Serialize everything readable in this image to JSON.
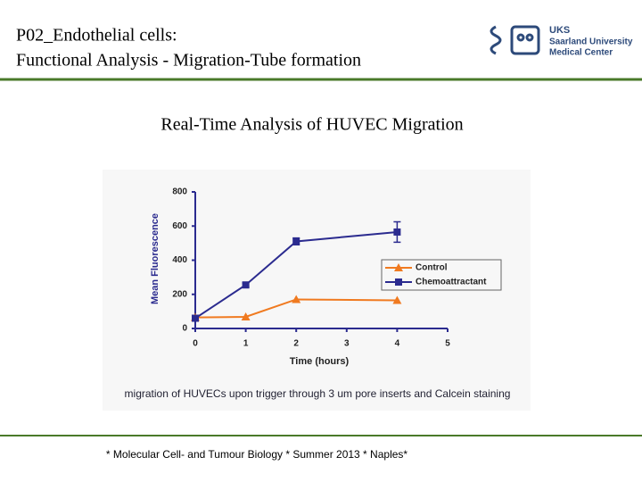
{
  "header": {
    "title_lines": [
      "P02_Endothelial cells:",
      "Functional Analysis - Migration-Tube formation"
    ],
    "logo_lines": [
      "UKS",
      "Saarland University",
      "Medical Center"
    ]
  },
  "chart_data": {
    "type": "line",
    "title": "Real-Time Analysis of HUVEC Migration",
    "x_label": "Time (hours)",
    "y_label": "Mean Fluorescence",
    "caption": "migration of HUVECs upon trigger through 3 um pore inserts and Calcein staining",
    "x": [
      0,
      1,
      2,
      4
    ],
    "series": [
      {
        "name": "Control",
        "color": "#f07a20",
        "marker": "triangle",
        "values": [
          65,
          68,
          170,
          165
        ]
      },
      {
        "name": "Chemoattractant",
        "color": "#2b2b8f",
        "marker": "square",
        "values": [
          60,
          255,
          510,
          565
        ],
        "errors": [
          8,
          12,
          20,
          60
        ]
      }
    ],
    "xlim": [
      0,
      5
    ],
    "xticks": [
      0,
      1,
      2,
      3,
      4,
      5
    ],
    "ylim": [
      0,
      800
    ],
    "yticks": [
      0,
      200,
      400,
      600,
      800
    ],
    "legend": "right"
  },
  "footer": {
    "text": "* Molecular Cell- and Tumour Biology * Summer 2013 * Naples*"
  }
}
